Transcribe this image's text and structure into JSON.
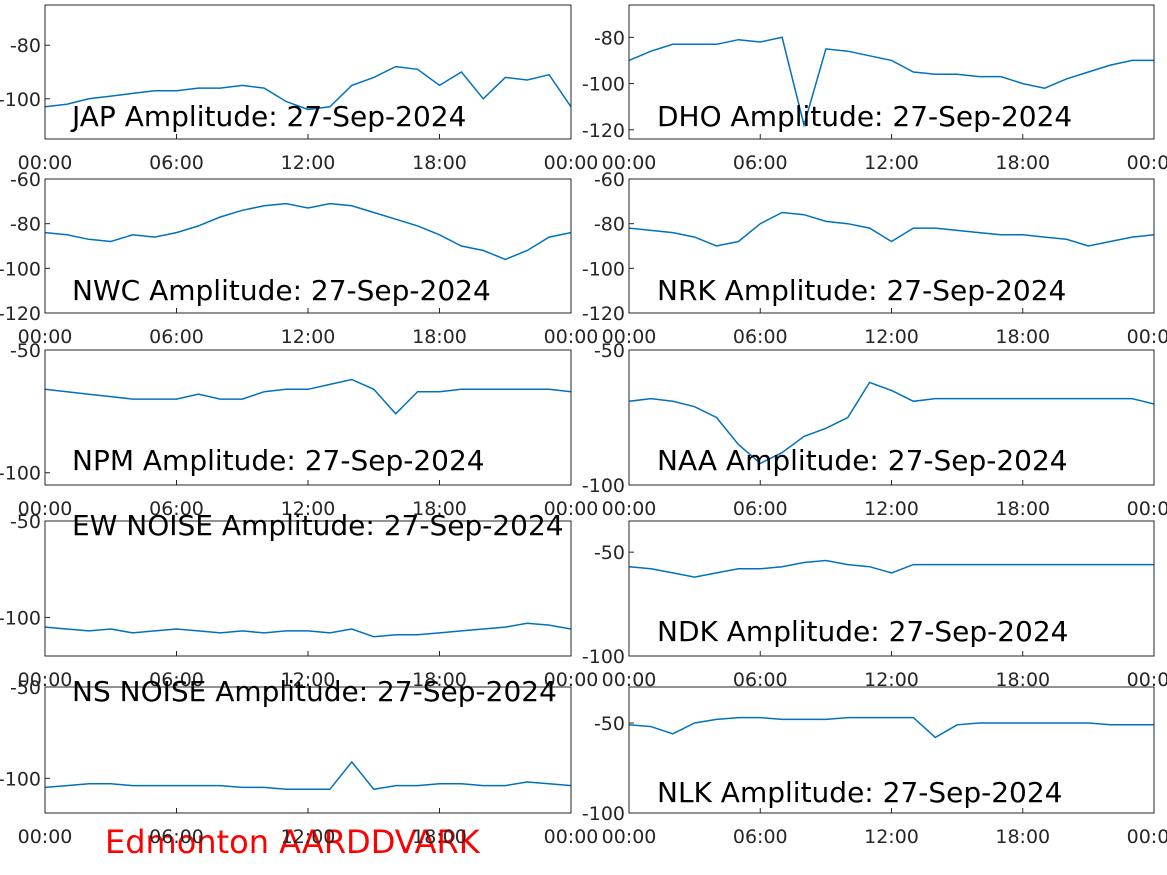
{
  "chart_data": [
    {
      "type": "line",
      "title": "JAP Amplitude: 27-Sep-2024",
      "x": [
        0,
        1,
        2,
        3,
        4,
        5,
        6,
        7,
        8,
        9,
        10,
        11,
        12,
        13,
        14,
        15,
        16,
        17,
        18,
        19,
        20,
        21,
        22,
        23,
        24
      ],
      "series": [
        {
          "color": "#0072bd",
          "values": [
            -103,
            -102,
            -100,
            -99,
            -98,
            -97,
            -97,
            -96,
            -96,
            -95,
            -96,
            -101,
            -104,
            -103,
            -95,
            -92,
            -88,
            -89,
            -95,
            -90,
            -100,
            -92,
            -93,
            -91,
            -103
          ]
        }
      ],
      "xlim": [
        0,
        24
      ],
      "xticks": [
        {
          "value": 0,
          "label": "00:00"
        },
        {
          "value": 6,
          "label": "06:00"
        },
        {
          "value": 12,
          "label": "12:00"
        },
        {
          "value": 18,
          "label": "18:00"
        },
        {
          "value": 24,
          "label": "00:00"
        }
      ],
      "ylim": [
        -115,
        -65
      ],
      "yticks": [
        -80,
        -100
      ]
    },
    {
      "type": "line",
      "title": "DHO Amplitude: 27-Sep-2024",
      "x": [
        0,
        1,
        2,
        3,
        4,
        5,
        6,
        7,
        8,
        9,
        10,
        11,
        12,
        13,
        14,
        15,
        16,
        17,
        18,
        19,
        20,
        21,
        22,
        23,
        24
      ],
      "series": [
        {
          "color": "#0072bd",
          "values": [
            -90,
            -86,
            -83,
            -83,
            -83,
            -81,
            -82,
            -80,
            -118,
            -85,
            -86,
            -88,
            -90,
            -95,
            -96,
            -96,
            -97,
            -97,
            -100,
            -102,
            -98,
            -95,
            -92,
            -90,
            -90
          ]
        }
      ],
      "xlim": [
        0,
        24
      ],
      "xticks": [
        {
          "value": 0,
          "label": "00:00"
        },
        {
          "value": 6,
          "label": "06:00"
        },
        {
          "value": 12,
          "label": "12:00"
        },
        {
          "value": 18,
          "label": "18:00"
        },
        {
          "value": 24,
          "label": "00:00"
        }
      ],
      "ylim": [
        -124,
        -66
      ],
      "yticks": [
        -80,
        -100,
        -120
      ]
    },
    {
      "type": "line",
      "title": "NWC Amplitude: 27-Sep-2024",
      "x": [
        0,
        1,
        2,
        3,
        4,
        5,
        6,
        7,
        8,
        9,
        10,
        11,
        12,
        13,
        14,
        15,
        16,
        17,
        18,
        19,
        20,
        21,
        22,
        23,
        24
      ],
      "series": [
        {
          "color": "#0072bd",
          "values": [
            -84,
            -85,
            -87,
            -88,
            -85,
            -86,
            -84,
            -81,
            -77,
            -74,
            -72,
            -71,
            -73,
            -71,
            -72,
            -75,
            -78,
            -81,
            -85,
            -90,
            -92,
            -96,
            -92,
            -86,
            -84
          ]
        }
      ],
      "xlim": [
        0,
        24
      ],
      "xticks": [
        {
          "value": 0,
          "label": "00:00"
        },
        {
          "value": 6,
          "label": "06:00"
        },
        {
          "value": 12,
          "label": "12:00"
        },
        {
          "value": 18,
          "label": "18:00"
        },
        {
          "value": 24,
          "label": "00:00"
        }
      ],
      "ylim": [
        -120,
        -60
      ],
      "yticks": [
        -60,
        -80,
        -100,
        -120
      ]
    },
    {
      "type": "line",
      "title": "NRK Amplitude: 27-Sep-2024",
      "x": [
        0,
        1,
        2,
        3,
        4,
        5,
        6,
        7,
        8,
        9,
        10,
        11,
        12,
        13,
        14,
        15,
        16,
        17,
        18,
        19,
        20,
        21,
        22,
        23,
        24
      ],
      "series": [
        {
          "color": "#0072bd",
          "values": [
            -82,
            -83,
            -84,
            -86,
            -90,
            -88,
            -80,
            -75,
            -76,
            -79,
            -80,
            -82,
            -88,
            -82,
            -82,
            -83,
            -84,
            -85,
            -85,
            -86,
            -87,
            -90,
            -88,
            -86,
            -85
          ]
        }
      ],
      "xlim": [
        0,
        24
      ],
      "xticks": [
        {
          "value": 0,
          "label": "00:00"
        },
        {
          "value": 6,
          "label": "06:00"
        },
        {
          "value": 12,
          "label": "12:00"
        },
        {
          "value": 18,
          "label": "18:00"
        },
        {
          "value": 24,
          "label": "00:00"
        }
      ],
      "ylim": [
        -120,
        -60
      ],
      "yticks": [
        -60,
        -80,
        -100,
        -120
      ]
    },
    {
      "type": "line",
      "title": "NPM Amplitude: 27-Sep-2024",
      "x": [
        0,
        1,
        2,
        3,
        4,
        5,
        6,
        7,
        8,
        9,
        10,
        11,
        12,
        13,
        14,
        15,
        16,
        17,
        18,
        19,
        20,
        21,
        22,
        23,
        24
      ],
      "series": [
        {
          "color": "#0072bd",
          "values": [
            -66,
            -67,
            -68,
            -69,
            -70,
            -70,
            -70,
            -68,
            -70,
            -70,
            -67,
            -66,
            -66,
            -64,
            -62,
            -66,
            -76,
            -67,
            -67,
            -66,
            -66,
            -66,
            -66,
            -66,
            -67
          ]
        }
      ],
      "xlim": [
        0,
        24
      ],
      "xticks": [
        {
          "value": 0,
          "label": "00:00"
        },
        {
          "value": 6,
          "label": "06:00"
        },
        {
          "value": 12,
          "label": "12:00"
        },
        {
          "value": 18,
          "label": "18:00"
        },
        {
          "value": 24,
          "label": "00:00"
        }
      ],
      "ylim": [
        -105,
        -50
      ],
      "yticks": [
        -50,
        -100
      ]
    },
    {
      "type": "line",
      "title": "NAA Amplitude: 27-Sep-2024",
      "x": [
        0,
        1,
        2,
        3,
        4,
        5,
        6,
        7,
        8,
        9,
        10,
        11,
        12,
        13,
        14,
        15,
        16,
        17,
        18,
        19,
        20,
        21,
        22,
        23,
        24
      ],
      "series": [
        {
          "color": "#0072bd",
          "values": [
            -69,
            -68,
            -69,
            -71,
            -75,
            -85,
            -92,
            -88,
            -82,
            -79,
            -75,
            -62,
            -65,
            -69,
            -68,
            -68,
            -68,
            -68,
            -68,
            -68,
            -68,
            -68,
            -68,
            -68,
            -70
          ]
        }
      ],
      "xlim": [
        0,
        24
      ],
      "xticks": [
        {
          "value": 0,
          "label": "00:00"
        },
        {
          "value": 6,
          "label": "06:00"
        },
        {
          "value": 12,
          "label": "12:00"
        },
        {
          "value": 18,
          "label": "18:00"
        },
        {
          "value": 24,
          "label": "00:00"
        }
      ],
      "ylim": [
        -100,
        -50
      ],
      "yticks": [
        -50,
        -100
      ]
    },
    {
      "type": "line",
      "title": "EW NOISE Amplitude: 27-Sep-2024",
      "x": [
        0,
        1,
        2,
        3,
        4,
        5,
        6,
        7,
        8,
        9,
        10,
        11,
        12,
        13,
        14,
        15,
        16,
        17,
        18,
        19,
        20,
        21,
        22,
        23,
        24
      ],
      "series": [
        {
          "color": "#0072bd",
          "values": [
            -105,
            -106,
            -107,
            -106,
            -108,
            -107,
            -106,
            -107,
            -108,
            -107,
            -108,
            -107,
            -107,
            -108,
            -106,
            -110,
            -109,
            -109,
            -108,
            -107,
            -106,
            -105,
            -103,
            -104,
            -106
          ]
        }
      ],
      "xlim": [
        0,
        24
      ],
      "xticks": [
        {
          "value": 0,
          "label": "00:00"
        },
        {
          "value": 6,
          "label": "06:00"
        },
        {
          "value": 12,
          "label": "12:00"
        },
        {
          "value": 18,
          "label": "18:00"
        },
        {
          "value": 24,
          "label": "00:00"
        }
      ],
      "ylim": [
        -120,
        -50
      ],
      "yticks": [
        -50,
        -100
      ]
    },
    {
      "type": "line",
      "title": "NDK Amplitude: 27-Sep-2024",
      "x": [
        0,
        1,
        2,
        3,
        4,
        5,
        6,
        7,
        8,
        9,
        10,
        11,
        12,
        13,
        14,
        15,
        16,
        17,
        18,
        19,
        20,
        21,
        22,
        23,
        24
      ],
      "series": [
        {
          "color": "#0072bd",
          "values": [
            -57,
            -58,
            -60,
            -62,
            -60,
            -58,
            -58,
            -57,
            -55,
            -54,
            -56,
            -57,
            -60,
            -56,
            -56,
            -56,
            -56,
            -56,
            -56,
            -56,
            -56,
            -56,
            -56,
            -56,
            -56
          ]
        }
      ],
      "xlim": [
        0,
        24
      ],
      "xticks": [
        {
          "value": 0,
          "label": "00:00"
        },
        {
          "value": 6,
          "label": "06:00"
        },
        {
          "value": 12,
          "label": "12:00"
        },
        {
          "value": 18,
          "label": "18:00"
        },
        {
          "value": 24,
          "label": "00:00"
        }
      ],
      "ylim": [
        -100,
        -35
      ],
      "yticks": [
        -50,
        -100
      ]
    },
    {
      "type": "line",
      "title": "NS NOISE Amplitude: 27-Sep-2024",
      "x": [
        0,
        1,
        2,
        3,
        4,
        5,
        6,
        7,
        8,
        9,
        10,
        11,
        12,
        13,
        14,
        15,
        16,
        17,
        18,
        19,
        20,
        21,
        22,
        23,
        24
      ],
      "series": [
        {
          "color": "#0072bd",
          "values": [
            -105,
            -104,
            -103,
            -103,
            -104,
            -104,
            -104,
            -104,
            -104,
            -105,
            -105,
            -106,
            -106,
            -106,
            -91,
            -106,
            -104,
            -104,
            -103,
            -103,
            -104,
            -104,
            -102,
            -103,
            -104
          ]
        }
      ],
      "xlim": [
        0,
        24
      ],
      "xticks": [
        {
          "value": 0,
          "label": "00:00"
        },
        {
          "value": 6,
          "label": "06:00"
        },
        {
          "value": 12,
          "label": "12:00"
        },
        {
          "value": 18,
          "label": "18:00"
        },
        {
          "value": 24,
          "label": "00:00"
        }
      ],
      "ylim": [
        -119,
        -50
      ],
      "yticks": [
        -50,
        -100
      ]
    },
    {
      "type": "line",
      "title": "NLK Amplitude: 27-Sep-2024",
      "x": [
        0,
        1,
        2,
        3,
        4,
        5,
        6,
        7,
        8,
        9,
        10,
        11,
        12,
        13,
        14,
        15,
        16,
        17,
        18,
        19,
        20,
        21,
        22,
        23,
        24
      ],
      "series": [
        {
          "color": "#0072bd",
          "values": [
            -51,
            -52,
            -56,
            -50,
            -48,
            -47,
            -47,
            -48,
            -48,
            -48,
            -47,
            -47,
            -47,
            -47,
            -58,
            -51,
            -50,
            -50,
            -50,
            -50,
            -50,
            -50,
            -51,
            -51,
            -51
          ]
        }
      ],
      "xlim": [
        0,
        24
      ],
      "xticks": [
        {
          "value": 0,
          "label": "00:00"
        },
        {
          "value": 6,
          "label": "06:00"
        },
        {
          "value": 12,
          "label": "12:00"
        },
        {
          "value": 18,
          "label": "18:00"
        },
        {
          "value": 24,
          "label": "00:00"
        }
      ],
      "ylim": [
        -100,
        -30
      ],
      "yticks": [
        -50,
        -100
      ]
    }
  ],
  "footer": "Edmonton AARDDVARK"
}
